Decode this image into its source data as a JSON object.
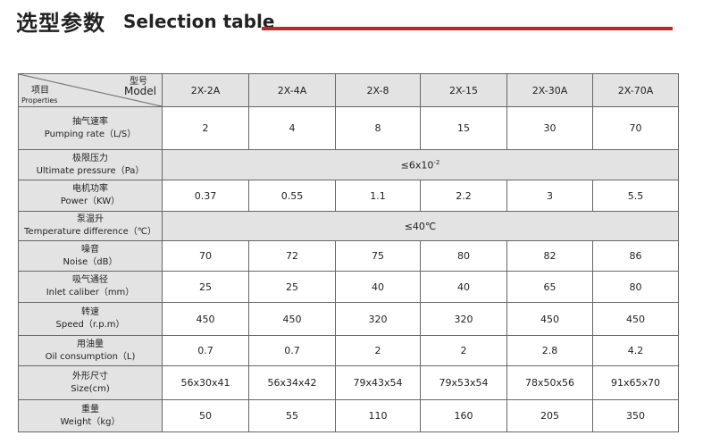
{
  "header": {
    "title_cn": "选型参数",
    "title_en": "Selection table"
  },
  "table": {
    "corner": {
      "model_cn": "型号",
      "model_en": "Model",
      "prop_cn": "项目",
      "prop_en": "Properties"
    },
    "columns": [
      "2X-2A",
      "2X-4A",
      "2X-8",
      "2X-15",
      "2X-30A",
      "2X-70A"
    ],
    "rows": [
      {
        "label_cn": "抽气速率",
        "label_en": "Pumping rate（L/S）",
        "values": [
          2,
          4,
          8,
          15,
          30,
          70
        ]
      },
      {
        "label_cn": "极限压力",
        "label_en": "Ultimate pressure（Pa）",
        "merged": {
          "base": "≤6x10",
          "sup": "-2"
        }
      },
      {
        "label_cn": "电机功率",
        "label_en": "Power（KW）",
        "values": [
          0.37,
          0.55,
          1.1,
          2.2,
          3,
          5.5
        ]
      },
      {
        "label_cn": "泵温升",
        "label_en": "Temperature difference（℃）",
        "merged": {
          "base": "≤40℃"
        }
      },
      {
        "label_cn": "噪音",
        "label_en": "Noise（dB）",
        "values": [
          70,
          72,
          75,
          80,
          82,
          86
        ]
      },
      {
        "label_cn": "吸气通径",
        "label_en": "Inlet caliber（mm）",
        "values": [
          25,
          25,
          40,
          40,
          65,
          80
        ]
      },
      {
        "label_cn": "转速",
        "label_en": "Speed（r.p.m）",
        "values": [
          450,
          450,
          320,
          320,
          450,
          450
        ]
      },
      {
        "label_cn": "用油量",
        "label_en": "Oil consumption（L)",
        "values": [
          0.7,
          0.7,
          2,
          2,
          2.8,
          4.2
        ]
      },
      {
        "label_cn": "外形尺寸",
        "label_en": "Size(cm)",
        "values": [
          "56x30x41",
          "56x34x42",
          "79x43x54",
          "79x53x54",
          "78x50x56",
          "91x65x70"
        ]
      },
      {
        "label_cn": "重量",
        "label_en": "Weight（kg）",
        "values": [
          50,
          55,
          110,
          160,
          205,
          350
        ]
      }
    ]
  }
}
